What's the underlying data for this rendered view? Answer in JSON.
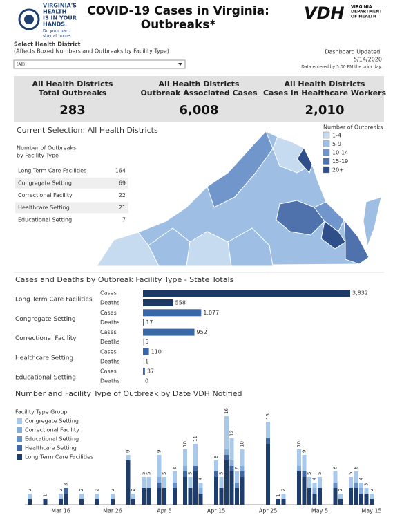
{
  "header": {
    "logo_lines": [
      "VIRGINIA'S",
      "HEALTH",
      "IS IN YOUR",
      "HANDS."
    ],
    "logo_tagline": [
      "Do your part,",
      "stay at home."
    ],
    "title": [
      "COVID-19 Cases in Virginia:",
      "Outbreaks*"
    ],
    "vdh_mark": "VDH",
    "vdh_name": [
      "VIRGINIA",
      "DEPARTMENT",
      "OF HEALTH"
    ]
  },
  "filter": {
    "label": "Select Health District",
    "note": "(Affects Boxed Numbers and Outbreaks by Facility Type)",
    "selected": "(All)"
  },
  "updated": {
    "label": "Dashboard Updated:",
    "date": "5/14/2020",
    "note": "Data entered by 5:00 PM the prior day."
  },
  "kpis": [
    {
      "label": [
        "All Health Districts",
        "Total Outbreaks"
      ],
      "value": "283"
    },
    {
      "label": [
        "All Health Districts",
        "Outbreak Associated Cases"
      ],
      "value": "6,008"
    },
    {
      "label": [
        "All Health Districts",
        "Cases in Healthcare Workers"
      ],
      "value": "2,010"
    }
  ],
  "selection": "Current Selection: All Health Districts",
  "facility_table": {
    "title": [
      "Number of Outbreaks",
      "by Facility Type"
    ],
    "rows": [
      [
        "Long Term Care Facilities",
        164
      ],
      [
        "Congregate Setting",
        69
      ],
      [
        "Correctional Facility",
        22
      ],
      [
        "Healthcare Setting",
        21
      ],
      [
        "Educational Setting",
        7
      ]
    ]
  },
  "map": {
    "legend_title": "Number of Outbreaks",
    "legend": [
      {
        "label": "1-4",
        "color": "#c6dbef"
      },
      {
        "label": "5-9",
        "color": "#9ebfe3"
      },
      {
        "label": "10-14",
        "color": "#7096cc"
      },
      {
        "label": "15-19",
        "color": "#4f72ad"
      },
      {
        "label": "20+",
        "color": "#2f4f8a"
      }
    ]
  },
  "chart_data": [
    {
      "type": "bar",
      "orientation": "horizontal",
      "title": "Cases and Deaths by Outbreak Facility Type - State Totals",
      "categories": [
        "Long Term Care Facilities",
        "Congregate Setting",
        "Correctional Facility",
        "Healthcare Setting",
        "Educational Setting"
      ],
      "colors": [
        "#1d3966",
        "#3a67a8",
        "#3a67a8",
        "#3a67a8",
        "#3a67a8"
      ],
      "series": [
        {
          "name": "Cases",
          "values": [
            3832,
            1077,
            952,
            110,
            37
          ],
          "value_labels": [
            "3,832",
            "1,077",
            "952",
            "110",
            "37"
          ]
        },
        {
          "name": "Deaths",
          "values": [
            558,
            17,
            5,
            1,
            0
          ]
        }
      ]
    },
    {
      "type": "stacked-bar",
      "title": "Number and Facility Type of Outbreak by Date VDH Notified",
      "legend_title": "Facility Type Group",
      "categories": [
        null,
        null,
        null,
        null,
        null,
        null,
        "Mar 16",
        null,
        null,
        null,
        null,
        null,
        null,
        null,
        null,
        null,
        "Mar 26",
        null,
        null,
        null,
        null,
        null,
        null,
        null,
        null,
        null,
        "Apr 5",
        null,
        null,
        null,
        null,
        null,
        null,
        null,
        null,
        null,
        "Apr 15",
        null,
        null,
        null,
        null,
        null,
        null,
        null,
        null,
        null,
        "Apr 25",
        null,
        null,
        null,
        null,
        null,
        null,
        null,
        null,
        null,
        "May 5",
        null,
        null,
        null,
        null,
        null,
        null,
        null,
        null,
        null,
        "May 15"
      ],
      "series": [
        {
          "name": "Congregate Setting",
          "color": "#a9c9ea",
          "values": [
            1,
            0,
            0,
            0,
            0,
            0,
            1,
            0,
            0,
            0,
            1,
            0,
            0,
            1,
            0,
            0,
            1,
            0,
            0,
            1,
            1,
            0,
            2,
            2,
            0,
            4,
            2,
            0,
            2,
            0,
            3,
            2,
            4,
            1,
            0,
            0,
            2,
            2,
            6,
            4,
            2,
            3,
            0,
            0,
            0,
            0,
            3,
            0,
            0,
            1,
            0,
            0,
            3,
            3,
            2,
            1,
            2,
            0,
            0,
            2,
            1,
            0,
            2,
            2,
            1,
            1,
            1
          ]
        },
        {
          "name": "Correctional Facility",
          "color": "#86acda",
          "values": [
            0,
            0,
            0,
            0,
            0,
            0,
            0,
            0,
            0,
            0,
            0,
            0,
            0,
            0,
            0,
            0,
            0,
            0,
            0,
            0,
            0,
            0,
            0,
            0,
            0,
            1,
            0,
            0,
            0,
            0,
            1,
            0,
            0,
            1,
            0,
            0,
            0,
            0,
            1,
            1,
            0,
            1,
            0,
            0,
            0,
            0,
            0,
            0,
            0,
            0,
            0,
            0,
            1,
            0,
            0,
            1,
            0,
            0,
            0,
            0,
            0,
            0,
            0,
            0,
            1,
            0,
            0
          ]
        },
        {
          "name": "Educational Setting",
          "color": "#6690c8",
          "values": [
            0,
            0,
            0,
            0,
            0,
            0,
            0,
            0,
            0,
            0,
            0,
            0,
            0,
            0,
            0,
            0,
            0,
            0,
            0,
            0,
            0,
            0,
            0,
            0,
            0,
            0,
            0,
            0,
            1,
            0,
            0,
            0,
            0,
            0,
            0,
            0,
            0,
            0,
            0,
            0,
            1,
            0,
            0,
            0,
            0,
            0,
            0,
            0,
            0,
            0,
            0,
            0,
            0,
            0,
            0,
            0,
            0,
            0,
            0,
            1,
            0,
            0,
            0,
            1,
            0,
            0,
            0
          ]
        },
        {
          "name": "Healthcare Setting",
          "color": "#3f67a5",
          "values": [
            0,
            0,
            0,
            0,
            0,
            0,
            0,
            1,
            0,
            0,
            0,
            0,
            0,
            0,
            0,
            0,
            0,
            0,
            0,
            0,
            0,
            0,
            0,
            0,
            0,
            1,
            0,
            0,
            0,
            0,
            1,
            0,
            1,
            0,
            0,
            0,
            1,
            0,
            1,
            1,
            0,
            1,
            0,
            0,
            0,
            0,
            1,
            0,
            0,
            0,
            0,
            0,
            0,
            1,
            0,
            0,
            0,
            0,
            0,
            0,
            0,
            0,
            0,
            0,
            0,
            0,
            0
          ]
        },
        {
          "name": "Long Term Care Facilities",
          "color": "#1e3c6c",
          "values": [
            1,
            0,
            0,
            1,
            0,
            0,
            1,
            2,
            0,
            0,
            1,
            0,
            0,
            1,
            0,
            0,
            1,
            0,
            0,
            8,
            1,
            0,
            3,
            3,
            0,
            3,
            3,
            0,
            3,
            0,
            5,
            3,
            6,
            2,
            0,
            0,
            5,
            3,
            8,
            6,
            3,
            5,
            0,
            0,
            0,
            0,
            11,
            0,
            1,
            1,
            0,
            0,
            6,
            5,
            3,
            2,
            3,
            0,
            0,
            3,
            1,
            0,
            3,
            3,
            2,
            2,
            1
          ]
        }
      ],
      "total_labels": [
        2,
        null,
        null,
        1,
        null,
        null,
        2,
        3,
        null,
        null,
        2,
        null,
        null,
        2,
        null,
        null,
        2,
        null,
        null,
        9,
        2,
        null,
        5,
        5,
        null,
        9,
        5,
        null,
        6,
        null,
        10,
        5,
        11,
        4,
        null,
        null,
        8,
        5,
        16,
        12,
        6,
        10,
        null,
        null,
        null,
        null,
        15,
        null,
        1,
        2,
        null,
        null,
        10,
        9,
        5,
        4,
        5,
        null,
        null,
        6,
        2,
        null,
        5,
        6,
        4,
        3,
        2
      ]
    }
  ]
}
